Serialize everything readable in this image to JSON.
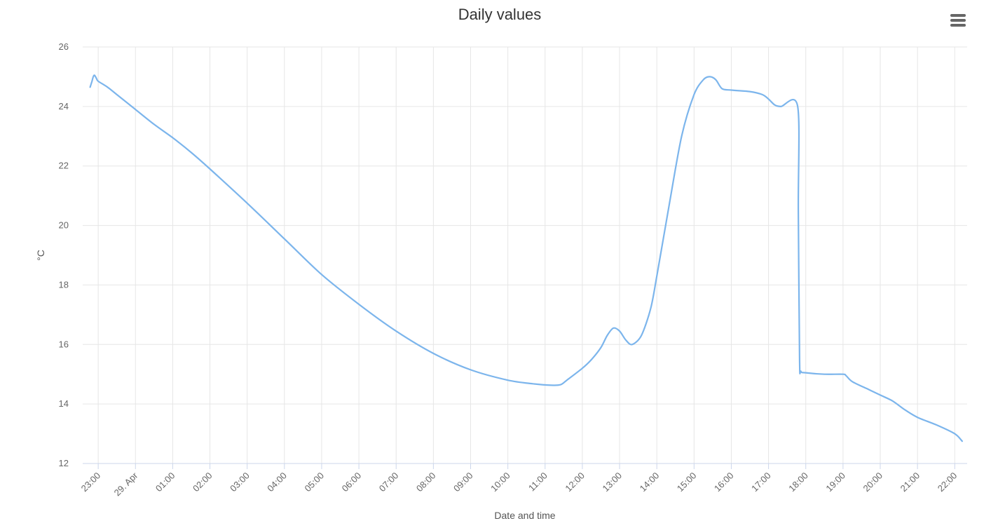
{
  "page": {
    "title": "Daily values",
    "menu_icon": "hamburger-menu-icon"
  },
  "colors": {
    "series": "#7cb5ec",
    "grid": "#e6e6e6",
    "axis_text": "#666666",
    "title": "#333333"
  },
  "chart_data": {
    "type": "line",
    "title": "Daily values",
    "xlabel": "Date and time",
    "ylabel": "°C",
    "ylim": [
      12,
      26
    ],
    "yticks": [
      12,
      14,
      16,
      18,
      20,
      22,
      24,
      26
    ],
    "xlim": [
      "28. Apr 22:35",
      "29. Apr 22:20"
    ],
    "xticks": [
      {
        "t": "28. Apr 23:00",
        "label": "23:00"
      },
      {
        "t": "29. Apr 00:00",
        "label": "29. Apr"
      },
      {
        "t": "29. Apr 01:00",
        "label": "01:00"
      },
      {
        "t": "29. Apr 02:00",
        "label": "02:00"
      },
      {
        "t": "29. Apr 03:00",
        "label": "03:00"
      },
      {
        "t": "29. Apr 04:00",
        "label": "04:00"
      },
      {
        "t": "29. Apr 05:00",
        "label": "05:00"
      },
      {
        "t": "29. Apr 06:00",
        "label": "06:00"
      },
      {
        "t": "29. Apr 07:00",
        "label": "07:00"
      },
      {
        "t": "29. Apr 08:00",
        "label": "08:00"
      },
      {
        "t": "29. Apr 09:00",
        "label": "09:00"
      },
      {
        "t": "29. Apr 10:00",
        "label": "10:00"
      },
      {
        "t": "29. Apr 11:00",
        "label": "11:00"
      },
      {
        "t": "29. Apr 12:00",
        "label": "12:00"
      },
      {
        "t": "29. Apr 13:00",
        "label": "13:00"
      },
      {
        "t": "29. Apr 14:00",
        "label": "14:00"
      },
      {
        "t": "29. Apr 15:00",
        "label": "15:00"
      },
      {
        "t": "29. Apr 16:00",
        "label": "16:00"
      },
      {
        "t": "29. Apr 17:00",
        "label": "17:00"
      },
      {
        "t": "29. Apr 18:00",
        "label": "18:00"
      },
      {
        "t": "29. Apr 19:00",
        "label": "19:00"
      },
      {
        "t": "29. Apr 20:00",
        "label": "20:00"
      },
      {
        "t": "29. Apr 21:00",
        "label": "21:00"
      },
      {
        "t": "29. Apr 22:00",
        "label": "22:00"
      }
    ],
    "grid": true,
    "legend": "none",
    "series": [
      {
        "color": "#7cb5ec",
        "points": [
          [
            "28. Apr 22:47",
            24.65
          ],
          [
            "28. Apr 22:50",
            24.85
          ],
          [
            "28. Apr 22:52",
            25.0
          ],
          [
            "28. Apr 22:54",
            25.05
          ],
          [
            "28. Apr 22:57",
            24.95
          ],
          [
            "28. Apr 23:00",
            24.85
          ],
          [
            "28. Apr 23:15",
            24.65
          ],
          [
            "28. Apr 23:30",
            24.4
          ],
          [
            "29. Apr 00:00",
            23.9
          ],
          [
            "29. Apr 00:30",
            23.4
          ],
          [
            "29. Apr 01:00",
            22.95
          ],
          [
            "29. Apr 01:30",
            22.45
          ],
          [
            "29. Apr 02:00",
            21.9
          ],
          [
            "29. Apr 03:00",
            20.75
          ],
          [
            "29. Apr 04:00",
            19.55
          ],
          [
            "29. Apr 05:00",
            18.35
          ],
          [
            "29. Apr 06:00",
            17.35
          ],
          [
            "29. Apr 07:00",
            16.45
          ],
          [
            "29. Apr 08:00",
            15.7
          ],
          [
            "29. Apr 09:00",
            15.15
          ],
          [
            "29. Apr 10:00",
            14.8
          ],
          [
            "29. Apr 10:40",
            14.68
          ],
          [
            "29. Apr 11:10",
            14.63
          ],
          [
            "29. Apr 11:25",
            14.65
          ],
          [
            "29. Apr 11:35",
            14.8
          ],
          [
            "29. Apr 12:00",
            15.2
          ],
          [
            "29. Apr 12:15",
            15.5
          ],
          [
            "29. Apr 12:30",
            15.9
          ],
          [
            "29. Apr 12:40",
            16.3
          ],
          [
            "29. Apr 12:50",
            16.55
          ],
          [
            "29. Apr 13:00",
            16.45
          ],
          [
            "29. Apr 13:10",
            16.15
          ],
          [
            "29. Apr 13:20",
            16.0
          ],
          [
            "29. Apr 13:35",
            16.3
          ],
          [
            "29. Apr 13:50",
            17.2
          ],
          [
            "29. Apr 14:00",
            18.3
          ],
          [
            "29. Apr 14:20",
            20.7
          ],
          [
            "29. Apr 14:40",
            23.0
          ],
          [
            "29. Apr 15:00",
            24.4
          ],
          [
            "29. Apr 15:15",
            24.9
          ],
          [
            "29. Apr 15:25",
            25.0
          ],
          [
            "29. Apr 15:35",
            24.9
          ],
          [
            "29. Apr 15:45",
            24.6
          ],
          [
            "29. Apr 16:00",
            24.55
          ],
          [
            "29. Apr 16:30",
            24.5
          ],
          [
            "29. Apr 16:50",
            24.4
          ],
          [
            "29. Apr 17:00",
            24.25
          ],
          [
            "29. Apr 17:10",
            24.05
          ],
          [
            "29. Apr 17:20",
            24.0
          ],
          [
            "29. Apr 17:47",
            24.0
          ],
          [
            "29. Apr 17:48",
            20.5
          ],
          [
            "29. Apr 17:50",
            15.5
          ],
          [
            "29. Apr 17:52",
            15.1
          ],
          [
            "29. Apr 18:00",
            15.05
          ],
          [
            "29. Apr 18:30",
            15.0
          ],
          [
            "29. Apr 19:00",
            15.0
          ],
          [
            "29. Apr 19:05",
            14.95
          ],
          [
            "29. Apr 19:15",
            14.75
          ],
          [
            "29. Apr 19:40",
            14.5
          ],
          [
            "29. Apr 20:00",
            14.3
          ],
          [
            "29. Apr 20:20",
            14.1
          ],
          [
            "29. Apr 20:40",
            13.8
          ],
          [
            "29. Apr 21:00",
            13.55
          ],
          [
            "29. Apr 21:30",
            13.3
          ],
          [
            "29. Apr 22:00",
            13.0
          ],
          [
            "29. Apr 22:12",
            12.75
          ]
        ]
      }
    ]
  }
}
